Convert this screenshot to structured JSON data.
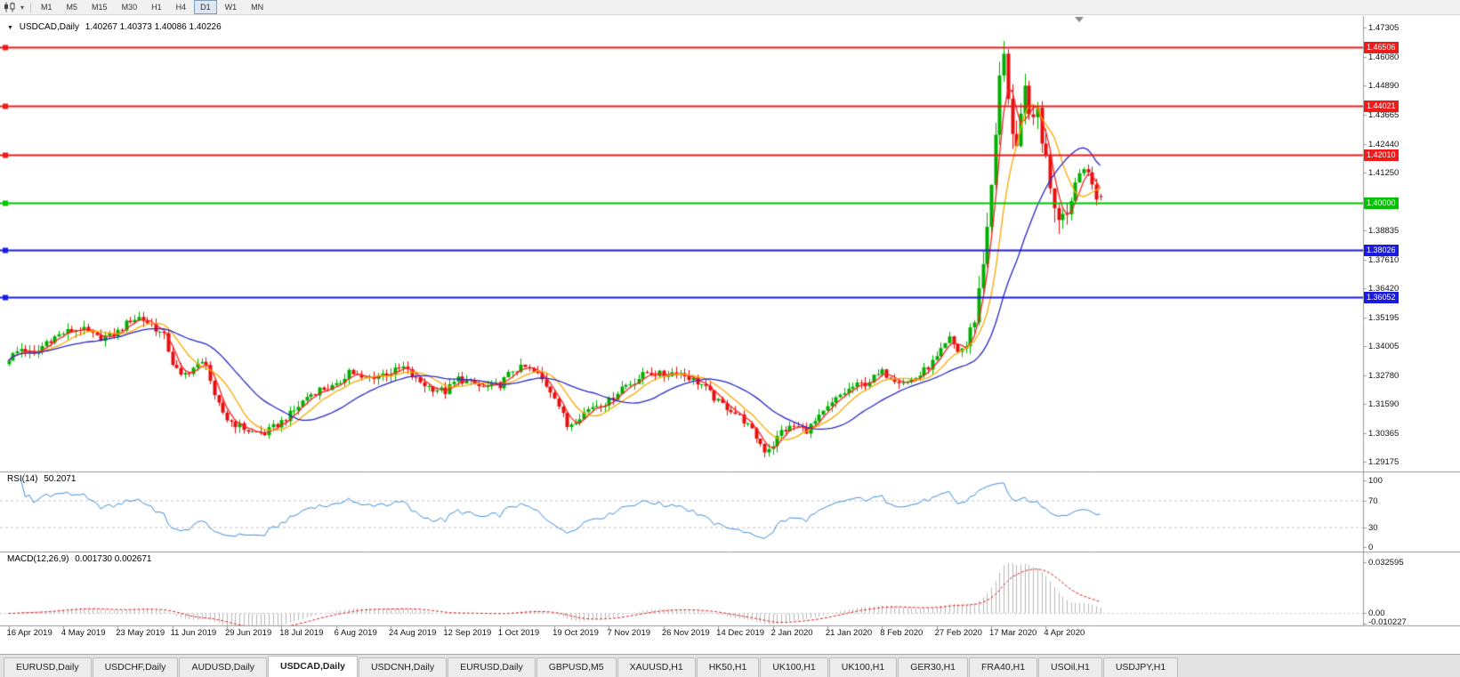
{
  "toolbar": {
    "timeframes": [
      {
        "label": "M1",
        "active": false
      },
      {
        "label": "M5",
        "active": false
      },
      {
        "label": "M15",
        "active": false
      },
      {
        "label": "M30",
        "active": false
      },
      {
        "label": "H1",
        "active": false
      },
      {
        "label": "H4",
        "active": false
      },
      {
        "label": "D1",
        "active": true
      },
      {
        "label": "W1",
        "active": false
      },
      {
        "label": "MN",
        "active": false
      }
    ]
  },
  "chart": {
    "header_symbol": "USDCAD,Daily",
    "header_ohlc": "1.40267 1.40373 1.40086 1.40226",
    "price_axis_ticks": [
      "1.47305",
      "1.46080",
      "1.44890",
      "1.43665",
      "1.42440",
      "1.41250",
      "1.38835",
      "1.37610",
      "1.36420",
      "1.35195",
      "1.34005",
      "1.32780",
      "1.31590",
      "1.30365",
      "1.29175"
    ],
    "levels": [
      {
        "label": "1.46506",
        "price": 1.46506,
        "color": "#ef1a1a",
        "width": 1.8,
        "type": "resistance"
      },
      {
        "label": "1.44021",
        "price": 1.44021,
        "color": "#ef1a1a",
        "width": 1.8,
        "type": "resistance"
      },
      {
        "label": "1.42010",
        "price": 1.4201,
        "color": "#ef1a1a",
        "width": 1.8,
        "type": "resistance"
      },
      {
        "label": "1.40000",
        "price": 1.4,
        "color": "#00c400",
        "width": 2.2,
        "type": "pivot"
      },
      {
        "label": "1.38026",
        "price": 1.38026,
        "color": "#1a1ae0",
        "width": 2.2,
        "type": "support"
      },
      {
        "label": "1.36052",
        "price": 1.36052,
        "color": "#1a1ae0",
        "width": 2.2,
        "type": "support"
      }
    ],
    "date_labels": [
      "16 Apr 2019",
      "4 May 2019",
      "23 May 2019",
      "11 Jun 2019",
      "29 Jun 2019",
      "18 Jul 2019",
      "6 Aug 2019",
      "24 Aug 2019",
      "12 Sep 2019",
      "1 Oct 2019",
      "19 Oct 2019",
      "7 Nov 2019",
      "26 Nov 2019",
      "14 Dec 2019",
      "2 Jan 2020",
      "21 Jan 2020",
      "8 Feb 2020",
      "27 Feb 2020",
      "17 Mar 2020",
      "4 Apr 2020"
    ]
  },
  "rsi": {
    "name": "RSI(14)",
    "value": "50.2071",
    "axis_ticks": [
      "100",
      "70",
      "30",
      "0"
    ],
    "line_color": "#3f8ede"
  },
  "macd": {
    "name": "MACD(12,26,9)",
    "values": "0.001730 0.002671",
    "axis_ticks": [
      "0.032595",
      "0.00",
      "-0.010227"
    ],
    "histogram_color": "#b8b8b8",
    "signal_color": "#e02020"
  },
  "tabs": {
    "items": [
      {
        "label": "EURUSD,Daily",
        "active": false
      },
      {
        "label": "USDCHF,Daily",
        "active": false
      },
      {
        "label": "AUDUSD,Daily",
        "active": false
      },
      {
        "label": "USDCAD,Daily",
        "active": true
      },
      {
        "label": "USDCNH,Daily",
        "active": false
      },
      {
        "label": "EURUSD,Daily",
        "active": false
      },
      {
        "label": "GBPUSD,M5",
        "active": false
      },
      {
        "label": "XAUUSD,H1",
        "active": false
      },
      {
        "label": "HK50,H1",
        "active": false
      },
      {
        "label": "UK100,H1",
        "active": false
      },
      {
        "label": "UK100,H1",
        "active": false
      },
      {
        "label": "GER30,H1",
        "active": false
      },
      {
        "label": "FRA40,H1",
        "active": false
      },
      {
        "label": "USOil,H1",
        "active": false
      },
      {
        "label": "USDJPY,H1",
        "active": false
      }
    ]
  },
  "chart_data": {
    "type": "candlestick",
    "symbol": "USDCAD",
    "timeframe": "Daily",
    "bar_count": 261,
    "bars_per_x_label": 13,
    "x_labels": [
      "16 Apr 2019",
      "4 May 2019",
      "23 May 2019",
      "11 Jun 2019",
      "29 Jun 2019",
      "18 Jul 2019",
      "6 Aug 2019",
      "24 Aug 2019",
      "12 Sep 2019",
      "1 Oct 2019",
      "19 Oct 2019",
      "7 Nov 2019",
      "26 Nov 2019",
      "14 Dec 2019",
      "2 Jan 2020",
      "21 Jan 2020",
      "8 Feb 2020",
      "27 Feb 2020",
      "17 Mar 2020",
      "4 Apr 2020"
    ],
    "y_axis": {
      "min": 1.29175,
      "max": 1.47305
    },
    "last_candle": {
      "open": 1.40267,
      "high": 1.40373,
      "low": 1.40086,
      "close": 1.40226
    },
    "peak_high": 1.4675,
    "colors": {
      "bull": "#00b000",
      "bear": "#e80e0e"
    },
    "close_anchors": [
      [
        0,
        1.335
      ],
      [
        3,
        1.339
      ],
      [
        6,
        1.336
      ],
      [
        9,
        1.342
      ],
      [
        13,
        1.3455
      ],
      [
        17,
        1.3475
      ],
      [
        21,
        1.3435
      ],
      [
        24,
        1.344
      ],
      [
        26,
        1.346
      ],
      [
        29,
        1.351
      ],
      [
        31,
        1.352
      ],
      [
        34,
        1.349
      ],
      [
        37,
        1.344
      ],
      [
        39,
        1.333
      ],
      [
        41,
        1.327
      ],
      [
        44,
        1.331
      ],
      [
        47,
        1.3335
      ],
      [
        49,
        1.318
      ],
      [
        52,
        1.3095
      ],
      [
        55,
        1.3065
      ],
      [
        58,
        1.304
      ],
      [
        61,
        1.3035
      ],
      [
        65,
        1.3085
      ],
      [
        68,
        1.313
      ],
      [
        71,
        1.319
      ],
      [
        74,
        1.322
      ],
      [
        78,
        1.323
      ],
      [
        81,
        1.33
      ],
      [
        84,
        1.326
      ],
      [
        88,
        1.328
      ],
      [
        91,
        1.329
      ],
      [
        94,
        1.331
      ],
      [
        97,
        1.326
      ],
      [
        100,
        1.323
      ],
      [
        104,
        1.321
      ],
      [
        107,
        1.3265
      ],
      [
        110,
        1.3245
      ],
      [
        113,
        1.3225
      ],
      [
        117,
        1.324
      ],
      [
        120,
        1.33
      ],
      [
        123,
        1.331
      ],
      [
        126,
        1.328
      ],
      [
        130,
        1.3195
      ],
      [
        133,
        1.3065
      ],
      [
        136,
        1.311
      ],
      [
        139,
        1.315
      ],
      [
        143,
        1.317
      ],
      [
        146,
        1.323
      ],
      [
        149,
        1.3255
      ],
      [
        152,
        1.329
      ],
      [
        156,
        1.328
      ],
      [
        159,
        1.3295
      ],
      [
        162,
        1.327
      ],
      [
        165,
        1.324
      ],
      [
        169,
        1.3165
      ],
      [
        172,
        1.3135
      ],
      [
        175,
        1.309
      ],
      [
        178,
        1.302
      ],
      [
        180,
        1.2965
      ],
      [
        182,
        1.299
      ],
      [
        184,
        1.3045
      ],
      [
        187,
        1.3065
      ],
      [
        190,
        1.305
      ],
      [
        193,
        1.31
      ],
      [
        195,
        1.314
      ],
      [
        198,
        1.3195
      ],
      [
        201,
        1.323
      ],
      [
        204,
        1.3245
      ],
      [
        208,
        1.329
      ],
      [
        211,
        1.3265
      ],
      [
        214,
        1.325
      ],
      [
        217,
        1.328
      ],
      [
        221,
        1.335
      ],
      [
        224,
        1.343
      ],
      [
        226,
        1.338
      ],
      [
        228,
        1.34
      ],
      [
        230,
        1.352
      ],
      [
        232,
        1.375
      ],
      [
        233,
        1.392
      ],
      [
        234,
        1.405
      ],
      [
        235,
        1.428
      ],
      [
        236,
        1.451
      ],
      [
        237,
        1.464
      ],
      [
        238,
        1.445
      ],
      [
        239,
        1.428
      ],
      [
        240,
        1.42
      ],
      [
        241,
        1.434
      ],
      [
        242,
        1.447
      ],
      [
        243,
        1.44
      ],
      [
        244,
        1.432
      ],
      [
        245,
        1.439
      ],
      [
        246,
        1.427
      ],
      [
        247,
        1.418
      ],
      [
        248,
        1.408
      ],
      [
        249,
        1.4
      ],
      [
        250,
        1.3945
      ],
      [
        251,
        1.3985
      ],
      [
        252,
        1.395
      ],
      [
        253,
        1.4015
      ],
      [
        254,
        1.4085
      ],
      [
        255,
        1.4125
      ],
      [
        256,
        1.4155
      ],
      [
        257,
        1.413
      ],
      [
        258,
        1.406
      ],
      [
        259,
        1.401
      ],
      [
        260,
        1.40226
      ]
    ],
    "moving_averages": [
      {
        "period": 4,
        "color": "#ff2020"
      },
      {
        "period": 9,
        "color": "#ffa800"
      },
      {
        "period": 22,
        "color": "#2828c8"
      }
    ],
    "horizontal_levels": [
      1.46506,
      1.44021,
      1.4201,
      1.4,
      1.38026,
      1.36052
    ],
    "rsi": {
      "period": 14,
      "last": 50.2071,
      "overbought": 70,
      "oversold": 30,
      "range": [
        0,
        100
      ]
    },
    "macd": {
      "fast": 12,
      "slow": 26,
      "signal": 9,
      "last_main": 0.00173,
      "last_signal": 0.002671,
      "axis_max": 0.032595,
      "axis_min": -0.010227
    }
  }
}
